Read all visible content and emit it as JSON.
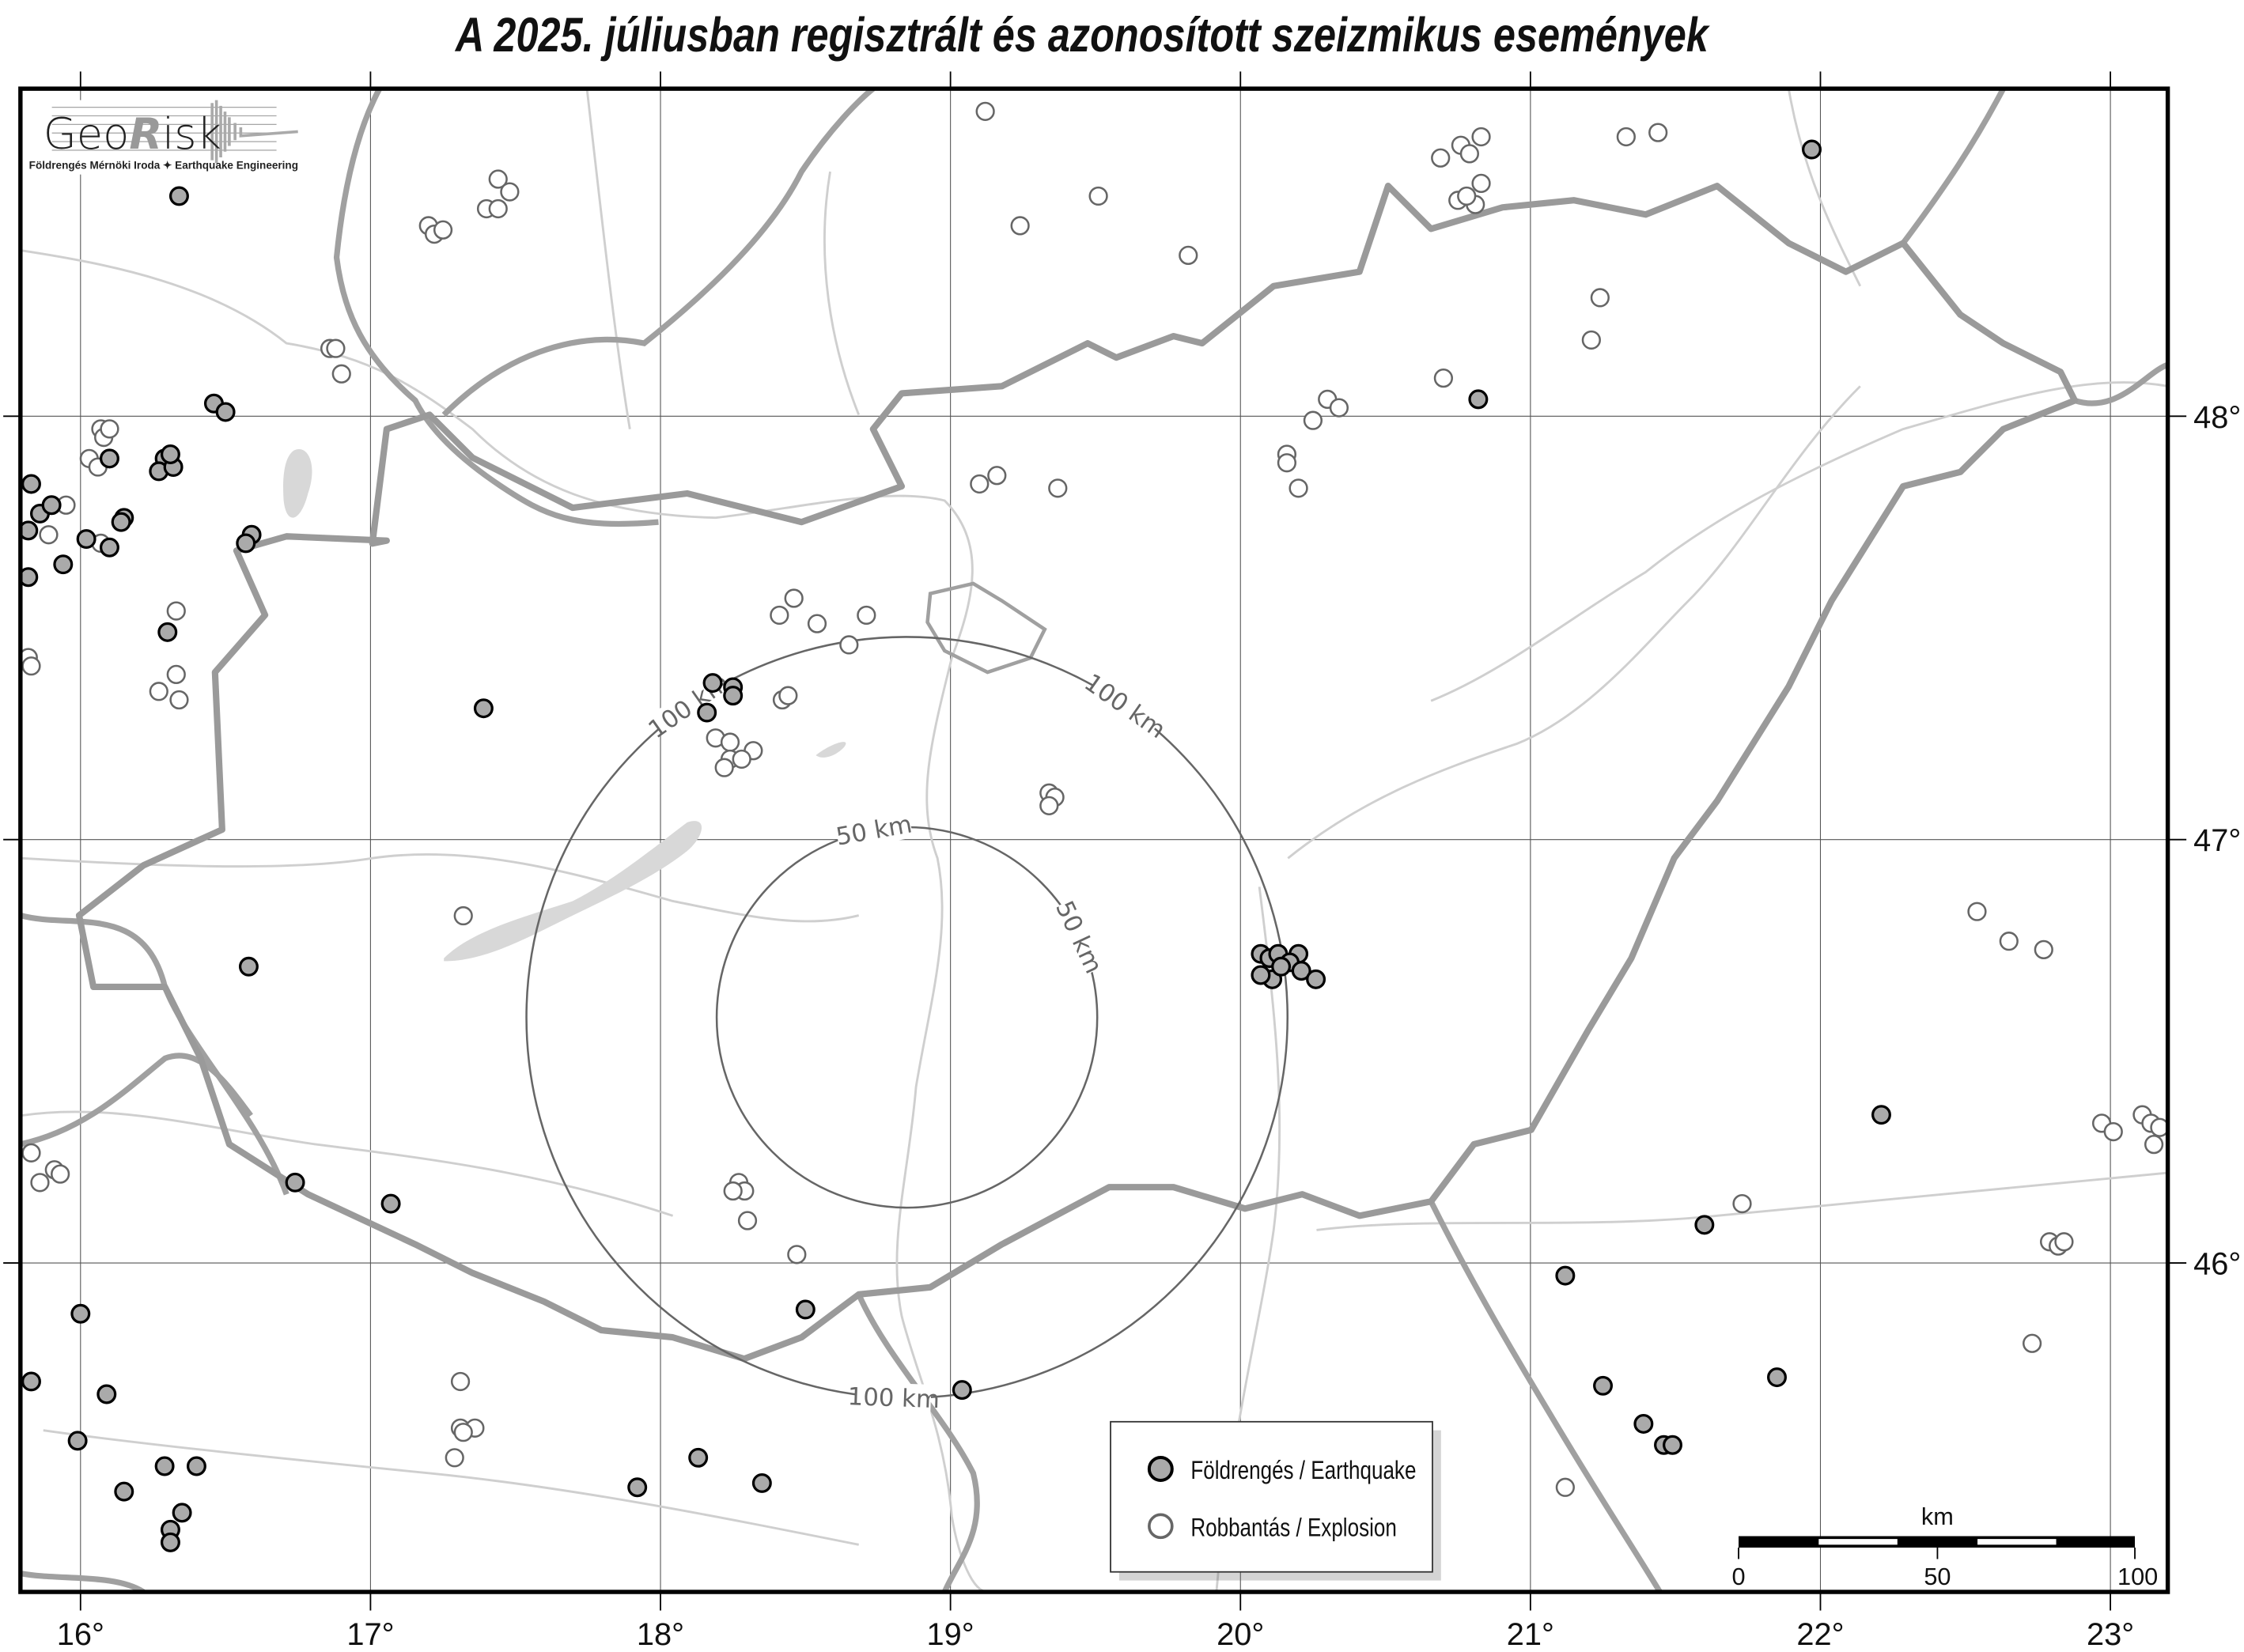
{
  "title": "A 2025. júliusban regisztrált és azonosított szeizmikus események",
  "logo": {
    "name_part1": "Geo",
    "name_part2": "R",
    "name_part3": "isk",
    "subtitle": "Földrengés Mérnöki Iroda ✦ Earthquake Engineering"
  },
  "axes": {
    "longitude_labels": [
      "16°",
      "17°",
      "18°",
      "19°",
      "20°",
      "21°",
      "22°",
      "23°"
    ],
    "longitude_values": [
      16,
      17,
      18,
      19,
      20,
      21,
      22,
      23
    ],
    "latitude_labels": [
      "48°",
      "47°",
      "46°"
    ],
    "latitude_values": [
      48,
      47,
      46
    ],
    "lon_range": [
      15.79,
      23.2
    ],
    "lat_range": [
      45.25,
      48.8
    ]
  },
  "distance_rings": {
    "center": {
      "lon": 18.85,
      "lat": 46.58
    },
    "rings": [
      {
        "radius_km": 50,
        "label": "50 km"
      },
      {
        "radius_km": 100,
        "label": "100 km"
      }
    ]
  },
  "legend": {
    "earthquake": "Földrengés / Earthquake",
    "explosion": "Robbantás / Explosion"
  },
  "scale_bar": {
    "unit": "km",
    "labels": [
      "0",
      "50",
      "100"
    ]
  },
  "colors": {
    "earthquake_fill": "#aaaaaa",
    "explosion_fill": "#ffffff",
    "border": "#999999",
    "river": "#cccccc",
    "lake": "#d8d8d8"
  },
  "earthquakes": [
    [
      16.34,
      48.52
    ],
    [
      21.97,
      48.63
    ],
    [
      16.46,
      48.03
    ],
    [
      16.5,
      48.01
    ],
    [
      20.82,
      48.04
    ],
    [
      15.83,
      47.84
    ],
    [
      16.29,
      47.9
    ],
    [
      16.27,
      47.87
    ],
    [
      16.32,
      47.88
    ],
    [
      16.31,
      47.91
    ],
    [
      15.86,
      47.77
    ],
    [
      15.9,
      47.79
    ],
    [
      16.15,
      47.76
    ],
    [
      16.14,
      47.75
    ],
    [
      15.82,
      47.73
    ],
    [
      16.02,
      47.71
    ],
    [
      16.1,
      47.69
    ],
    [
      15.94,
      47.65
    ],
    [
      15.82,
      47.62
    ],
    [
      16.59,
      47.72
    ],
    [
      16.57,
      47.7
    ],
    [
      16.1,
      47.9
    ],
    [
      16.3,
      47.49
    ],
    [
      17.39,
      47.31
    ],
    [
      18.18,
      47.37
    ],
    [
      18.25,
      47.36
    ],
    [
      18.25,
      47.34
    ],
    [
      18.16,
      47.3
    ],
    [
      16.58,
      46.7
    ],
    [
      20.07,
      46.73
    ],
    [
      20.1,
      46.72
    ],
    [
      20.13,
      46.73
    ],
    [
      20.2,
      46.73
    ],
    [
      20.17,
      46.71
    ],
    [
      20.11,
      46.67
    ],
    [
      20.07,
      46.68
    ],
    [
      20.21,
      46.69
    ],
    [
      20.26,
      46.67
    ],
    [
      20.14,
      46.7
    ],
    [
      22.21,
      46.35
    ],
    [
      16.74,
      46.19
    ],
    [
      17.07,
      46.14
    ],
    [
      21.6,
      46.09
    ],
    [
      21.12,
      45.97
    ],
    [
      16.0,
      45.88
    ],
    [
      18.5,
      45.89
    ],
    [
      15.83,
      45.72
    ],
    [
      16.09,
      45.69
    ],
    [
      19.04,
      45.7
    ],
    [
      21.25,
      45.71
    ],
    [
      21.85,
      45.73
    ],
    [
      15.99,
      45.58
    ],
    [
      21.39,
      45.62
    ],
    [
      21.46,
      45.57
    ],
    [
      21.49,
      45.57
    ],
    [
      18.13,
      45.54
    ],
    [
      18.35,
      45.48
    ],
    [
      17.92,
      45.47
    ],
    [
      16.29,
      45.52
    ],
    [
      16.4,
      45.52
    ],
    [
      16.15,
      45.46
    ],
    [
      16.35,
      45.41
    ],
    [
      16.31,
      45.37
    ],
    [
      16.31,
      45.34
    ]
  ],
  "explosions": [
    [
      19.12,
      48.72
    ],
    [
      19.24,
      48.45
    ],
    [
      19.51,
      48.52
    ],
    [
      19.82,
      48.38
    ],
    [
      17.2,
      48.45
    ],
    [
      17.22,
      48.43
    ],
    [
      17.25,
      48.44
    ],
    [
      17.44,
      48.56
    ],
    [
      17.48,
      48.53
    ],
    [
      17.4,
      48.49
    ],
    [
      17.44,
      48.49
    ],
    [
      16.86,
      48.16
    ],
    [
      16.88,
      48.16
    ],
    [
      16.9,
      48.1
    ],
    [
      16.07,
      47.97
    ],
    [
      16.08,
      47.95
    ],
    [
      16.1,
      47.97
    ],
    [
      16.03,
      47.9
    ],
    [
      16.06,
      47.88
    ],
    [
      15.95,
      47.79
    ],
    [
      15.89,
      47.72
    ],
    [
      16.07,
      47.7
    ],
    [
      15.82,
      47.43
    ],
    [
      15.83,
      47.41
    ],
    [
      16.33,
      47.54
    ],
    [
      16.27,
      47.35
    ],
    [
      16.34,
      47.33
    ],
    [
      16.33,
      47.39
    ],
    [
      20.69,
      48.61
    ],
    [
      20.76,
      48.64
    ],
    [
      20.79,
      48.62
    ],
    [
      20.83,
      48.66
    ],
    [
      20.75,
      48.51
    ],
    [
      20.81,
      48.5
    ],
    [
      20.83,
      48.55
    ],
    [
      20.78,
      48.52
    ],
    [
      21.33,
      48.66
    ],
    [
      21.44,
      48.67
    ],
    [
      21.24,
      48.28
    ],
    [
      21.21,
      48.18
    ],
    [
      20.7,
      48.09
    ],
    [
      20.3,
      48.04
    ],
    [
      20.34,
      48.02
    ],
    [
      20.25,
      47.99
    ],
    [
      20.16,
      47.91
    ],
    [
      20.16,
      47.89
    ],
    [
      20.2,
      47.83
    ],
    [
      19.1,
      47.84
    ],
    [
      19.16,
      47.86
    ],
    [
      19.37,
      47.83
    ],
    [
      18.46,
      47.57
    ],
    [
      18.41,
      47.53
    ],
    [
      18.54,
      47.51
    ],
    [
      18.71,
      47.53
    ],
    [
      18.65,
      47.46
    ],
    [
      18.42,
      47.33
    ],
    [
      18.44,
      47.34
    ],
    [
      18.19,
      47.24
    ],
    [
      18.24,
      47.23
    ],
    [
      18.32,
      47.21
    ],
    [
      18.24,
      47.19
    ],
    [
      18.22,
      47.17
    ],
    [
      18.28,
      47.19
    ],
    [
      19.34,
      47.11
    ],
    [
      19.36,
      47.1
    ],
    [
      19.34,
      47.08
    ],
    [
      17.32,
      46.82
    ],
    [
      22.54,
      46.83
    ],
    [
      22.65,
      46.76
    ],
    [
      22.77,
      46.74
    ],
    [
      22.97,
      46.33
    ],
    [
      23.01,
      46.31
    ],
    [
      23.11,
      46.35
    ],
    [
      23.14,
      46.33
    ],
    [
      23.15,
      46.28
    ],
    [
      23.17,
      46.32
    ],
    [
      21.73,
      46.14
    ],
    [
      22.79,
      46.05
    ],
    [
      22.82,
      46.04
    ],
    [
      22.84,
      46.05
    ],
    [
      22.73,
      45.81
    ],
    [
      15.83,
      46.26
    ],
    [
      15.86,
      46.19
    ],
    [
      15.91,
      46.22
    ],
    [
      15.93,
      46.21
    ],
    [
      18.27,
      46.19
    ],
    [
      18.29,
      46.17
    ],
    [
      18.25,
      46.17
    ],
    [
      18.3,
      46.1
    ],
    [
      18.47,
      46.02
    ],
    [
      17.31,
      45.72
    ],
    [
      17.31,
      45.61
    ],
    [
      17.36,
      45.61
    ],
    [
      17.32,
      45.6
    ],
    [
      17.29,
      45.54
    ],
    [
      21.12,
      45.47
    ]
  ]
}
